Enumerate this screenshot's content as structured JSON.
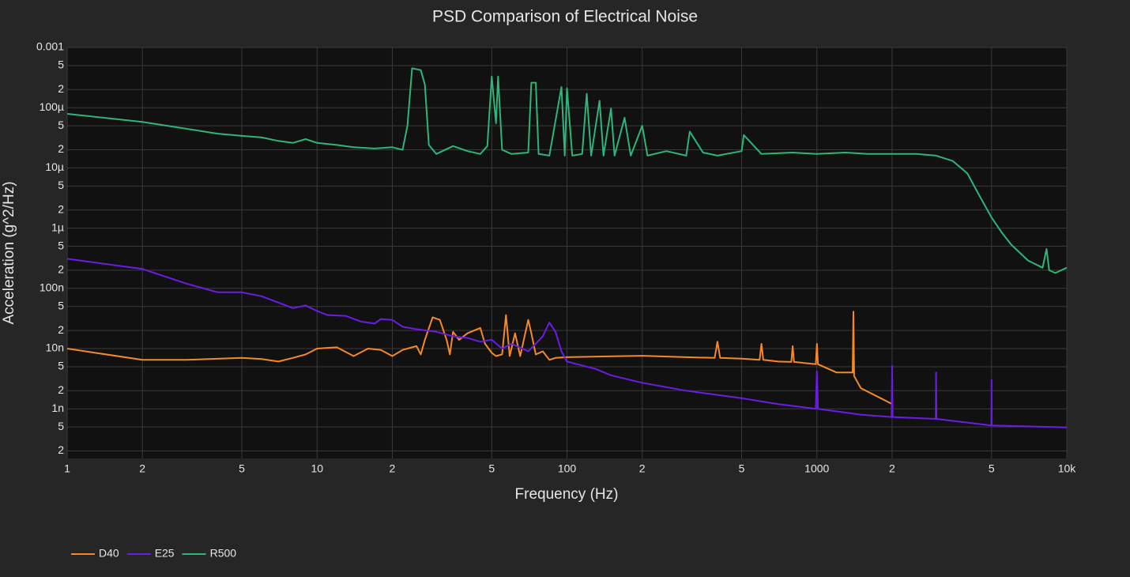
{
  "chart_data": {
    "type": "line",
    "title": "PSD Comparison of Electrical Noise",
    "x_label": "Frequency (Hz)",
    "y_label": "Acceleration (g^2/Hz)",
    "xscale": "log",
    "yscale": "log",
    "grid": true,
    "legend": "bottom-left",
    "xlim": [
      1,
      10000
    ],
    "ylim": [
      1.5e-10,
      0.001
    ],
    "xticks": [
      1,
      {
        "value": 2,
        "label": "2"
      },
      {
        "value": 5,
        "label": "5"
      },
      10,
      {
        "value": 20,
        "label": "2"
      },
      {
        "value": 50,
        "label": "5"
      },
      100,
      {
        "value": 200,
        "label": "2"
      },
      {
        "value": 500,
        "label": "5"
      },
      1000,
      {
        "value": 2000,
        "label": "2"
      },
      {
        "value": 5000,
        "label": "5"
      },
      {
        "value": 10000,
        "label": "10k"
      }
    ],
    "yticks": [
      {
        "value": 2e-10,
        "label": "2"
      },
      {
        "value": 5e-10,
        "label": "5"
      },
      {
        "value": 1e-09,
        "label": "1n"
      },
      {
        "value": 2e-09,
        "label": "2"
      },
      {
        "value": 5e-09,
        "label": "5"
      },
      {
        "value": 1e-08,
        "label": "10n"
      },
      {
        "value": 2e-08,
        "label": "2"
      },
      {
        "value": 5e-08,
        "label": "5"
      },
      {
        "value": 1e-07,
        "label": "100n"
      },
      {
        "value": 2e-07,
        "label": "2"
      },
      {
        "value": 5e-07,
        "label": "5"
      },
      {
        "value": 1e-06,
        "label": "1µ"
      },
      {
        "value": 2e-06,
        "label": "2"
      },
      {
        "value": 5e-06,
        "label": "5"
      },
      {
        "value": 1e-05,
        "label": "10µ"
      },
      {
        "value": 2e-05,
        "label": "2"
      },
      {
        "value": 5e-05,
        "label": "5"
      },
      {
        "value": 0.0001,
        "label": "100µ"
      },
      {
        "value": 0.0002,
        "label": "2"
      },
      {
        "value": 0.0005,
        "label": "5"
      },
      0.001
    ],
    "series": [
      {
        "name": "D40",
        "color": "#f5892a",
        "x": [
          1,
          2,
          3,
          5,
          6,
          7,
          8,
          9,
          10,
          12,
          14,
          16,
          18,
          20,
          22,
          25,
          26,
          27,
          29,
          31,
          33,
          34,
          35,
          37,
          40,
          45,
          47,
          50,
          52,
          55,
          57,
          59,
          62,
          65,
          70,
          72,
          75,
          80,
          85,
          90,
          100,
          200,
          300,
          390,
          400,
          410,
          500,
          590,
          600,
          610,
          700,
          790,
          800,
          810,
          990,
          1000,
          1010,
          1200,
          1390,
          1400,
          1410,
          1500,
          1800,
          2000
        ],
        "values": [
          1e-08,
          6.5e-09,
          6.5e-09,
          7e-09,
          6.7e-09,
          6.1e-09,
          7e-09,
          8e-09,
          1e-08,
          1.05e-08,
          7.5e-09,
          1e-08,
          9.5e-09,
          7.5e-09,
          9.5e-09,
          1.1e-08,
          8e-09,
          1.4e-08,
          3.3e-08,
          3e-08,
          1.4e-08,
          8e-09,
          1.9e-08,
          1.4e-08,
          1.8e-08,
          2.2e-08,
          1.2e-08,
          8.5e-09,
          7.5e-09,
          8e-09,
          3.6e-08,
          7.5e-09,
          1.8e-08,
          7.5e-09,
          3e-08,
          1.8e-08,
          8e-09,
          9e-09,
          6.5e-09,
          7e-09,
          7.2e-09,
          7.6e-09,
          7.2e-09,
          7e-09,
          1.3e-08,
          7e-09,
          6.8e-09,
          6.5e-09,
          1.2e-08,
          6.5e-09,
          6.1e-09,
          6e-09,
          1.1e-08,
          6e-09,
          5.5e-09,
          1.2e-08,
          5.5e-09,
          4e-09,
          4e-09,
          4.1e-08,
          3.5e-09,
          2.2e-09,
          1.5e-09,
          1.2e-09
        ]
      },
      {
        "name": "E25",
        "color": "#6b1de6",
        "x": [
          1,
          2,
          3,
          4,
          5,
          6,
          7,
          8,
          9,
          10,
          11,
          13,
          15,
          17,
          18,
          20,
          22,
          25,
          30,
          35,
          40,
          45,
          50,
          55,
          60,
          70,
          80,
          85,
          90,
          95,
          100,
          110,
          130,
          150,
          200,
          300,
          500,
          700,
          990,
          1000,
          1010,
          1500,
          1990,
          2000,
          2010,
          2990,
          3000,
          3010,
          4990,
          5000,
          5010,
          10000
        ],
        "values": [
          3.1e-07,
          2.1e-07,
          1.2e-07,
          8.6e-08,
          8.6e-08,
          7.4e-08,
          5.8e-08,
          4.7e-08,
          5.2e-08,
          4.2e-08,
          3.6e-08,
          3.5e-08,
          2.8e-08,
          2.6e-08,
          3.1e-08,
          3e-08,
          2.3e-08,
          2.1e-08,
          1.9e-08,
          1.6e-08,
          1.5e-08,
          1.3e-08,
          1.4e-08,
          1e-08,
          1.2e-08,
          9e-09,
          1.6e-08,
          2.7e-08,
          1.9e-08,
          9e-09,
          6.1e-09,
          5.5e-09,
          4.6e-09,
          3.6e-09,
          2.7e-09,
          2e-09,
          1.5e-09,
          1.2e-09,
          1e-09,
          4.2e-09,
          1e-09,
          8e-10,
          7.3e-10,
          5.2e-09,
          7.3e-10,
          6.8e-10,
          4e-09,
          6.8e-10,
          5.3e-10,
          3e-09,
          5.3e-10,
          4.9e-10
        ]
      },
      {
        "name": "R500",
        "color": "#2db57a",
        "x": [
          1,
          2,
          4,
          5,
          6,
          7,
          8,
          9,
          10,
          12,
          14,
          17,
          20,
          22,
          23,
          24,
          26,
          27,
          28,
          30,
          35,
          40,
          45,
          48,
          50,
          52,
          53,
          55,
          60,
          70,
          72,
          75,
          77,
          85,
          95,
          98,
          100,
          105,
          115,
          120,
          125,
          135,
          140,
          150,
          155,
          170,
          180,
          200,
          210,
          250,
          300,
          310,
          350,
          400,
          500,
          510,
          600,
          800,
          1000,
          1300,
          1600,
          2000,
          2500,
          3000,
          3500,
          4000,
          4500,
          5000,
          5500,
          6000,
          7000,
          8000,
          8300,
          8500,
          9000,
          10000
        ],
        "values": [
          7.9e-05,
          5.8e-05,
          3.7e-05,
          3.4e-05,
          3.2e-05,
          2.8e-05,
          2.6e-05,
          3e-05,
          2.6e-05,
          2.4e-05,
          2.2e-05,
          2.1e-05,
          2.2e-05,
          2e-05,
          5e-05,
          0.00045,
          0.00042,
          0.00024,
          2.4e-05,
          1.7e-05,
          2.3e-05,
          1.9e-05,
          1.7e-05,
          2.3e-05,
          0.00033,
          5.5e-05,
          0.00033,
          2e-05,
          1.7e-05,
          1.8e-05,
          0.00026,
          0.00026,
          1.7e-05,
          1.6e-05,
          0.00022,
          1.6e-05,
          0.00021,
          1.6e-05,
          1.7e-05,
          0.00017,
          1.6e-05,
          0.00013,
          1.6e-05,
          9.7e-05,
          1.6e-05,
          6.8e-05,
          1.6e-05,
          5e-05,
          1.6e-05,
          1.9e-05,
          1.6e-05,
          4e-05,
          1.8e-05,
          1.6e-05,
          1.9e-05,
          3.5e-05,
          1.7e-05,
          1.8e-05,
          1.7e-05,
          1.8e-05,
          1.7e-05,
          1.7e-05,
          1.7e-05,
          1.6e-05,
          1.3e-05,
          8.1e-06,
          3.3e-06,
          1.5e-06,
          8.4e-07,
          5.3e-07,
          2.9e-07,
          2.2e-07,
          4.5e-07,
          2e-07,
          1.8e-07,
          2.2e-07
        ]
      }
    ]
  }
}
